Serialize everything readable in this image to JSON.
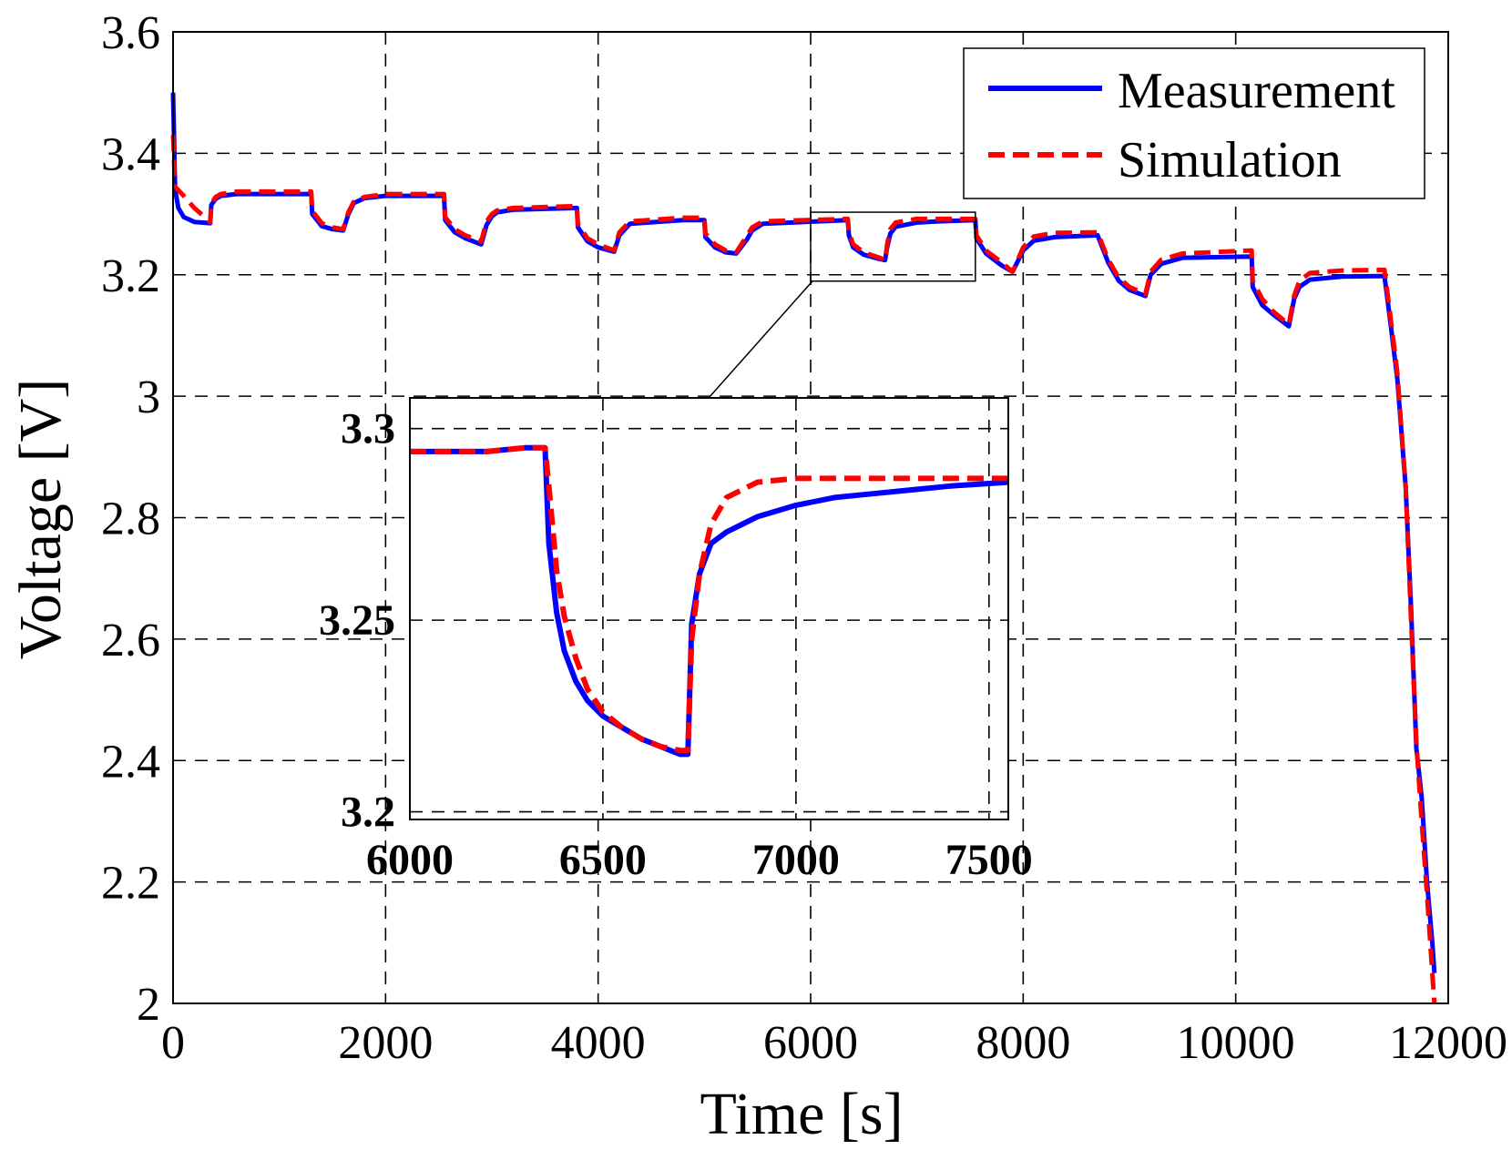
{
  "chart_data": {
    "type": "line",
    "title": "",
    "xlabel": "Time [s]",
    "ylabel": "Voltage [V]",
    "xlim": [
      0,
      12000
    ],
    "ylim": [
      2,
      3.6
    ],
    "xticks": [
      0,
      2000,
      4000,
      6000,
      8000,
      10000,
      12000
    ],
    "yticks": [
      2,
      2.2,
      2.4,
      2.6,
      2.8,
      3,
      3.2,
      3.4,
      3.6
    ],
    "xtick_labels": [
      "0",
      "2000",
      "4000",
      "6000",
      "8000",
      "10000",
      "12000"
    ],
    "ytick_labels": [
      "2",
      "2.2",
      "2.4",
      "2.6",
      "2.8",
      "3",
      "3.2",
      "3.4",
      "3.6"
    ],
    "grid": true,
    "legend": {
      "placement": "top-right",
      "entries": [
        "Measurement",
        "Simulation"
      ]
    },
    "series": [
      {
        "name": "Measurement",
        "color": "#0000ff",
        "style": "solid",
        "x": [
          0,
          20,
          50,
          100,
          200,
          350,
          360,
          400,
          450,
          600,
          1300,
          1310,
          1400,
          1500,
          1600,
          1650,
          1700,
          1800,
          2000,
          2550,
          2560,
          2650,
          2750,
          2900,
          2950,
          3000,
          3050,
          3200,
          3800,
          3810,
          3900,
          4000,
          4150,
          4200,
          4300,
          4800,
          5000,
          5010,
          5100,
          5200,
          5300,
          5400,
          5450,
          5550,
          6350,
          6360,
          6400,
          6500,
          6650,
          6700,
          6720,
          6750,
          6800,
          7000,
          7200,
          7550,
          7560,
          7650,
          7800,
          7900,
          8000,
          8100,
          8300,
          8700,
          8800,
          8900,
          9000,
          9150,
          9200,
          9300,
          9500,
          10150,
          10160,
          10250,
          10350,
          10500,
          10550,
          10600,
          10700,
          11000,
          11400,
          11450,
          11520,
          11600,
          11650,
          11700,
          11750,
          11800,
          11850,
          11870
        ],
        "y": [
          3.5,
          3.34,
          3.31,
          3.295,
          3.287,
          3.285,
          3.315,
          3.325,
          3.33,
          3.333,
          3.333,
          3.3,
          3.28,
          3.275,
          3.273,
          3.3,
          3.318,
          3.326,
          3.33,
          3.33,
          3.29,
          3.27,
          3.26,
          3.25,
          3.282,
          3.296,
          3.303,
          3.307,
          3.31,
          3.278,
          3.255,
          3.245,
          3.238,
          3.265,
          3.284,
          3.29,
          3.29,
          3.262,
          3.245,
          3.237,
          3.235,
          3.258,
          3.273,
          3.284,
          3.29,
          3.265,
          3.245,
          3.233,
          3.226,
          3.224,
          3.245,
          3.268,
          3.279,
          3.286,
          3.288,
          3.29,
          3.26,
          3.235,
          3.215,
          3.205,
          3.24,
          3.256,
          3.262,
          3.265,
          3.22,
          3.19,
          3.175,
          3.165,
          3.2,
          3.218,
          3.228,
          3.23,
          3.18,
          3.15,
          3.135,
          3.115,
          3.16,
          3.18,
          3.192,
          3.197,
          3.198,
          3.13,
          3.03,
          2.85,
          2.65,
          2.42,
          2.34,
          2.2,
          2.1,
          2.05
        ]
      },
      {
        "name": "Simulation",
        "color": "#ff0000",
        "style": "dashed",
        "x": [
          0,
          20,
          100,
          200,
          350,
          360,
          400,
          450,
          600,
          1300,
          1310,
          1400,
          1500,
          1600,
          1650,
          1700,
          1800,
          2000,
          2550,
          2560,
          2650,
          2750,
          2900,
          2950,
          3000,
          3050,
          3200,
          3800,
          3810,
          3900,
          4000,
          4150,
          4200,
          4300,
          4800,
          5000,
          5010,
          5100,
          5200,
          5300,
          5400,
          5450,
          5550,
          6350,
          6360,
          6400,
          6500,
          6650,
          6700,
          6720,
          6750,
          6800,
          7000,
          7550,
          7560,
          7650,
          7800,
          7900,
          8000,
          8100,
          8300,
          8700,
          8800,
          8900,
          9000,
          9150,
          9200,
          9300,
          9500,
          10150,
          10160,
          10250,
          10350,
          10500,
          10550,
          10600,
          10700,
          11000,
          11400,
          11450,
          11520,
          11600,
          11650,
          11700,
          11750,
          11800,
          11850,
          11870
        ],
        "y": [
          3.43,
          3.345,
          3.33,
          3.31,
          3.287,
          3.318,
          3.328,
          3.333,
          3.337,
          3.337,
          3.305,
          3.285,
          3.278,
          3.275,
          3.303,
          3.32,
          3.328,
          3.333,
          3.333,
          3.295,
          3.275,
          3.265,
          3.255,
          3.288,
          3.3,
          3.306,
          3.31,
          3.313,
          3.283,
          3.26,
          3.25,
          3.24,
          3.27,
          3.288,
          3.294,
          3.294,
          3.268,
          3.25,
          3.24,
          3.237,
          3.264,
          3.278,
          3.288,
          3.292,
          3.27,
          3.25,
          3.237,
          3.228,
          3.224,
          3.25,
          3.275,
          3.286,
          3.292,
          3.292,
          3.265,
          3.24,
          3.22,
          3.205,
          3.245,
          3.263,
          3.269,
          3.27,
          3.225,
          3.195,
          3.18,
          3.168,
          3.205,
          3.225,
          3.235,
          3.24,
          3.19,
          3.16,
          3.14,
          3.118,
          3.165,
          3.19,
          3.203,
          3.207,
          3.208,
          3.14,
          3.04,
          2.85,
          2.63,
          2.43,
          2.3,
          2.18,
          2.05,
          2.0
        ]
      }
    ],
    "inset": {
      "xlim": [
        6000,
        7550
      ],
      "ylim": [
        3.198,
        3.308
      ],
      "xticks": [
        6000,
        6500,
        7000,
        7500
      ],
      "xtick_labels": [
        "6000",
        "6500",
        "7000",
        "7500"
      ],
      "yticks": [
        3.2,
        3.25,
        3.3
      ],
      "ytick_labels": [
        "3.2",
        "3.25",
        "3.3"
      ],
      "zoom_region": {
        "x": [
          6000,
          7550
        ],
        "y": [
          3.2,
          3.3
        ]
      },
      "series": [
        {
          "name": "Measurement",
          "x": [
            6000,
            6100,
            6200,
            6300,
            6350,
            6360,
            6380,
            6400,
            6430,
            6460,
            6500,
            6550,
            6600,
            6650,
            6700,
            6720,
            6730,
            6750,
            6780,
            6820,
            6900,
            7000,
            7100,
            7200,
            7300,
            7400,
            7550
          ],
          "y": [
            3.294,
            3.294,
            3.294,
            3.295,
            3.295,
            3.27,
            3.252,
            3.242,
            3.234,
            3.229,
            3.225,
            3.222,
            3.219,
            3.217,
            3.215,
            3.215,
            3.249,
            3.262,
            3.27,
            3.273,
            3.277,
            3.28,
            3.282,
            3.283,
            3.284,
            3.285,
            3.286
          ]
        },
        {
          "name": "Simulation",
          "x": [
            6000,
            6100,
            6200,
            6300,
            6350,
            6360,
            6380,
            6400,
            6430,
            6460,
            6500,
            6550,
            6600,
            6650,
            6700,
            6720,
            6730,
            6750,
            6780,
            6820,
            6900,
            7000,
            7100,
            7200,
            7300,
            7400,
            7550
          ],
          "y": [
            3.294,
            3.294,
            3.294,
            3.295,
            3.295,
            3.285,
            3.263,
            3.251,
            3.24,
            3.232,
            3.226,
            3.222,
            3.219,
            3.217,
            3.216,
            3.216,
            3.245,
            3.262,
            3.275,
            3.282,
            3.286,
            3.287,
            3.287,
            3.287,
            3.287,
            3.287,
            3.287
          ]
        }
      ]
    }
  }
}
